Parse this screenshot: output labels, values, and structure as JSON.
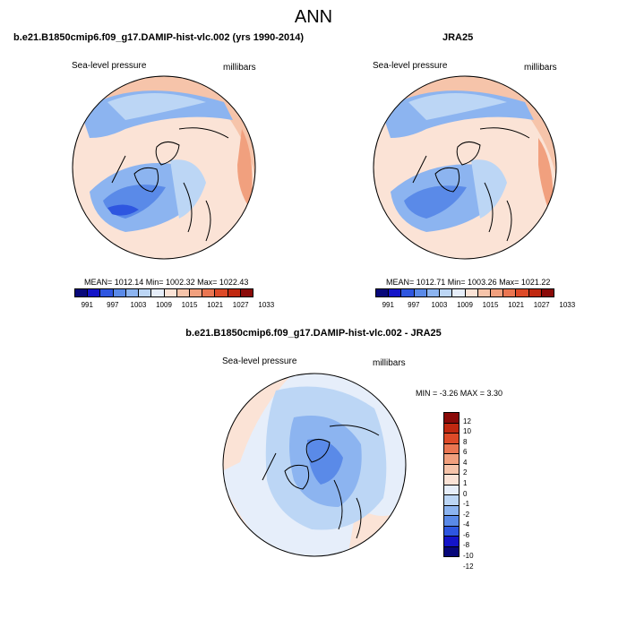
{
  "figure": {
    "title": "ANN",
    "panels": [
      {
        "title": "b.e21.B1850cmip6.f09_g17.DAMIP-hist-vlc.002 (yrs 1990-2014)",
        "left_label": "Sea-level pressure",
        "right_label": "millibars",
        "stats": "MEAN= 1012.14  Min= 1002.32  Max= 1022.43"
      },
      {
        "title": "JRA25",
        "left_label": "Sea-level pressure",
        "right_label": "millibars",
        "stats": "MEAN= 1012.71  Min= 1003.26  Max= 1021.22"
      },
      {
        "title": "b.e21.B1850cmip6.f09_g17.DAMIP-hist-vlc.002 - JRA25",
        "left_label": "Sea-level pressure",
        "right_label": "millibars",
        "stats": "MIN =  -3.26 MAX =   3.30"
      }
    ]
  },
  "colorbars": {
    "abs_colors": [
      "#08087a",
      "#1414c8",
      "#2e56e0",
      "#5a8ae8",
      "#8cb4f0",
      "#bcd6f5",
      "#e6eefa",
      "#fbe3d6",
      "#f6c4aa",
      "#f1a07e",
      "#ea7652",
      "#dd4a28",
      "#c02810",
      "#8a0a08"
    ],
    "abs_ticks": [
      "991",
      "997",
      "1003",
      "1009",
      "1015",
      "1021",
      "1027",
      "1033"
    ],
    "diff_colors": [
      "#8a0a08",
      "#c02810",
      "#dd4a28",
      "#ea7652",
      "#f1a07e",
      "#f6c4aa",
      "#fbe3d6",
      "#e6eefa",
      "#bcd6f5",
      "#8cb4f0",
      "#5a8ae8",
      "#2e56e0",
      "#1414c8",
      "#08087a"
    ],
    "diff_ticks": [
      "12",
      "10",
      "8",
      "6",
      "4",
      "2",
      "1",
      "0",
      "-1",
      "-2",
      "-4",
      "-6",
      "-8",
      "-10",
      "-12"
    ]
  }
}
